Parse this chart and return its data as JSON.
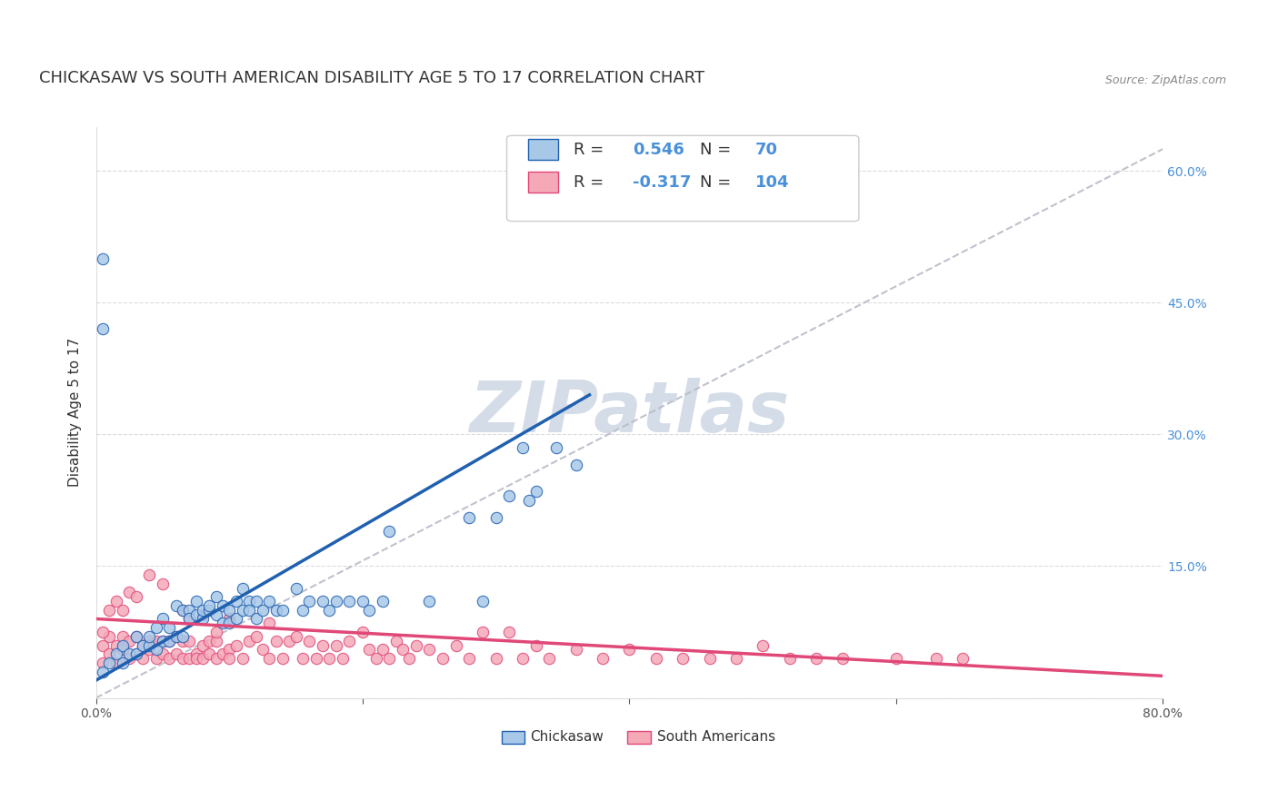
{
  "title": "CHICKASAW VS SOUTH AMERICAN DISABILITY AGE 5 TO 17 CORRELATION CHART",
  "source": "Source: ZipAtlas.com",
  "ylabel": "Disability Age 5 to 17",
  "xlim": [
    0.0,
    0.8
  ],
  "ylim": [
    0.0,
    0.65
  ],
  "xtick_positions": [
    0.0,
    0.2,
    0.4,
    0.6,
    0.8
  ],
  "xticklabels": [
    "0.0%",
    "",
    "",
    "",
    "80.0%"
  ],
  "ytick_positions": [
    0.0,
    0.15,
    0.3,
    0.45,
    0.6
  ],
  "ytick_right_labels": [
    "",
    "15.0%",
    "30.0%",
    "45.0%",
    "60.0%"
  ],
  "chickasaw_R": 0.546,
  "chickasaw_N": 70,
  "south_american_R": -0.317,
  "south_american_N": 104,
  "chickasaw_color": "#a8c8e8",
  "south_american_color": "#f4a8b8",
  "chickasaw_line_color": "#2060b0",
  "south_american_line_color": "#e04878",
  "trendline_color": "#b8bcc8",
  "watermark_color": "#d4dce8",
  "background_color": "#ffffff",
  "title_fontsize": 13,
  "axis_label_fontsize": 11,
  "tick_fontsize": 10,
  "legend_fontsize": 13,
  "chickasaw_line_x0": 0.0,
  "chickasaw_line_y0": 0.02,
  "chickasaw_line_x1": 0.37,
  "chickasaw_line_y1": 0.345,
  "sa_line_x0": 0.0,
  "sa_line_y0": 0.09,
  "sa_line_x1": 0.8,
  "sa_line_y1": 0.025,
  "dash_line_x0": 0.0,
  "dash_line_y0": 0.0,
  "dash_line_x1": 0.8,
  "dash_line_y1": 0.625,
  "chickasaw_x": [
    0.005,
    0.01,
    0.015,
    0.02,
    0.02,
    0.025,
    0.03,
    0.03,
    0.035,
    0.04,
    0.04,
    0.045,
    0.045,
    0.05,
    0.05,
    0.055,
    0.055,
    0.06,
    0.06,
    0.065,
    0.065,
    0.07,
    0.07,
    0.075,
    0.075,
    0.08,
    0.08,
    0.085,
    0.085,
    0.09,
    0.09,
    0.095,
    0.095,
    0.1,
    0.1,
    0.105,
    0.105,
    0.11,
    0.11,
    0.115,
    0.115,
    0.12,
    0.12,
    0.125,
    0.13,
    0.135,
    0.14,
    0.15,
    0.155,
    0.16,
    0.17,
    0.175,
    0.18,
    0.19,
    0.2,
    0.205,
    0.215,
    0.22,
    0.25,
    0.28,
    0.29,
    0.3,
    0.31,
    0.32,
    0.325,
    0.33,
    0.345,
    0.36,
    0.005,
    0.005
  ],
  "chickasaw_y": [
    0.03,
    0.04,
    0.05,
    0.06,
    0.04,
    0.05,
    0.07,
    0.05,
    0.06,
    0.06,
    0.07,
    0.055,
    0.08,
    0.09,
    0.065,
    0.065,
    0.08,
    0.07,
    0.105,
    0.1,
    0.07,
    0.1,
    0.09,
    0.095,
    0.11,
    0.09,
    0.1,
    0.1,
    0.105,
    0.115,
    0.095,
    0.085,
    0.105,
    0.1,
    0.085,
    0.11,
    0.09,
    0.1,
    0.125,
    0.11,
    0.1,
    0.11,
    0.09,
    0.1,
    0.11,
    0.1,
    0.1,
    0.125,
    0.1,
    0.11,
    0.11,
    0.1,
    0.11,
    0.11,
    0.11,
    0.1,
    0.11,
    0.19,
    0.11,
    0.205,
    0.11,
    0.205,
    0.23,
    0.285,
    0.225,
    0.235,
    0.285,
    0.265,
    0.5,
    0.42
  ],
  "south_american_x": [
    0.005,
    0.005,
    0.01,
    0.01,
    0.015,
    0.015,
    0.02,
    0.02,
    0.025,
    0.025,
    0.03,
    0.03,
    0.035,
    0.035,
    0.04,
    0.04,
    0.045,
    0.045,
    0.05,
    0.05,
    0.055,
    0.055,
    0.06,
    0.06,
    0.065,
    0.065,
    0.07,
    0.07,
    0.075,
    0.075,
    0.08,
    0.08,
    0.085,
    0.085,
    0.09,
    0.09,
    0.095,
    0.1,
    0.1,
    0.105,
    0.11,
    0.115,
    0.12,
    0.125,
    0.13,
    0.135,
    0.14,
    0.145,
    0.15,
    0.155,
    0.16,
    0.165,
    0.17,
    0.175,
    0.18,
    0.185,
    0.19,
    0.2,
    0.205,
    0.21,
    0.215,
    0.22,
    0.225,
    0.23,
    0.235,
    0.24,
    0.25,
    0.26,
    0.27,
    0.28,
    0.29,
    0.3,
    0.31,
    0.32,
    0.33,
    0.34,
    0.36,
    0.38,
    0.4,
    0.42,
    0.44,
    0.46,
    0.48,
    0.5,
    0.52,
    0.54,
    0.56,
    0.6,
    0.63,
    0.65,
    0.005,
    0.01,
    0.015,
    0.02,
    0.025,
    0.03,
    0.04,
    0.05,
    0.065,
    0.07,
    0.08,
    0.09,
    0.1,
    0.13
  ],
  "south_american_y": [
    0.04,
    0.06,
    0.05,
    0.07,
    0.04,
    0.06,
    0.055,
    0.07,
    0.045,
    0.065,
    0.05,
    0.07,
    0.045,
    0.06,
    0.055,
    0.065,
    0.045,
    0.065,
    0.05,
    0.065,
    0.045,
    0.065,
    0.05,
    0.07,
    0.045,
    0.065,
    0.045,
    0.065,
    0.05,
    0.045,
    0.06,
    0.045,
    0.05,
    0.065,
    0.045,
    0.065,
    0.05,
    0.055,
    0.045,
    0.06,
    0.045,
    0.065,
    0.07,
    0.055,
    0.045,
    0.065,
    0.045,
    0.065,
    0.07,
    0.045,
    0.065,
    0.045,
    0.06,
    0.045,
    0.06,
    0.045,
    0.065,
    0.075,
    0.055,
    0.045,
    0.055,
    0.045,
    0.065,
    0.055,
    0.045,
    0.06,
    0.055,
    0.045,
    0.06,
    0.045,
    0.075,
    0.045,
    0.075,
    0.045,
    0.06,
    0.045,
    0.055,
    0.045,
    0.055,
    0.045,
    0.045,
    0.045,
    0.045,
    0.06,
    0.045,
    0.045,
    0.045,
    0.045,
    0.045,
    0.045,
    0.075,
    0.1,
    0.11,
    0.1,
    0.12,
    0.115,
    0.14,
    0.13,
    0.1,
    0.09,
    0.095,
    0.075,
    0.09,
    0.085
  ]
}
